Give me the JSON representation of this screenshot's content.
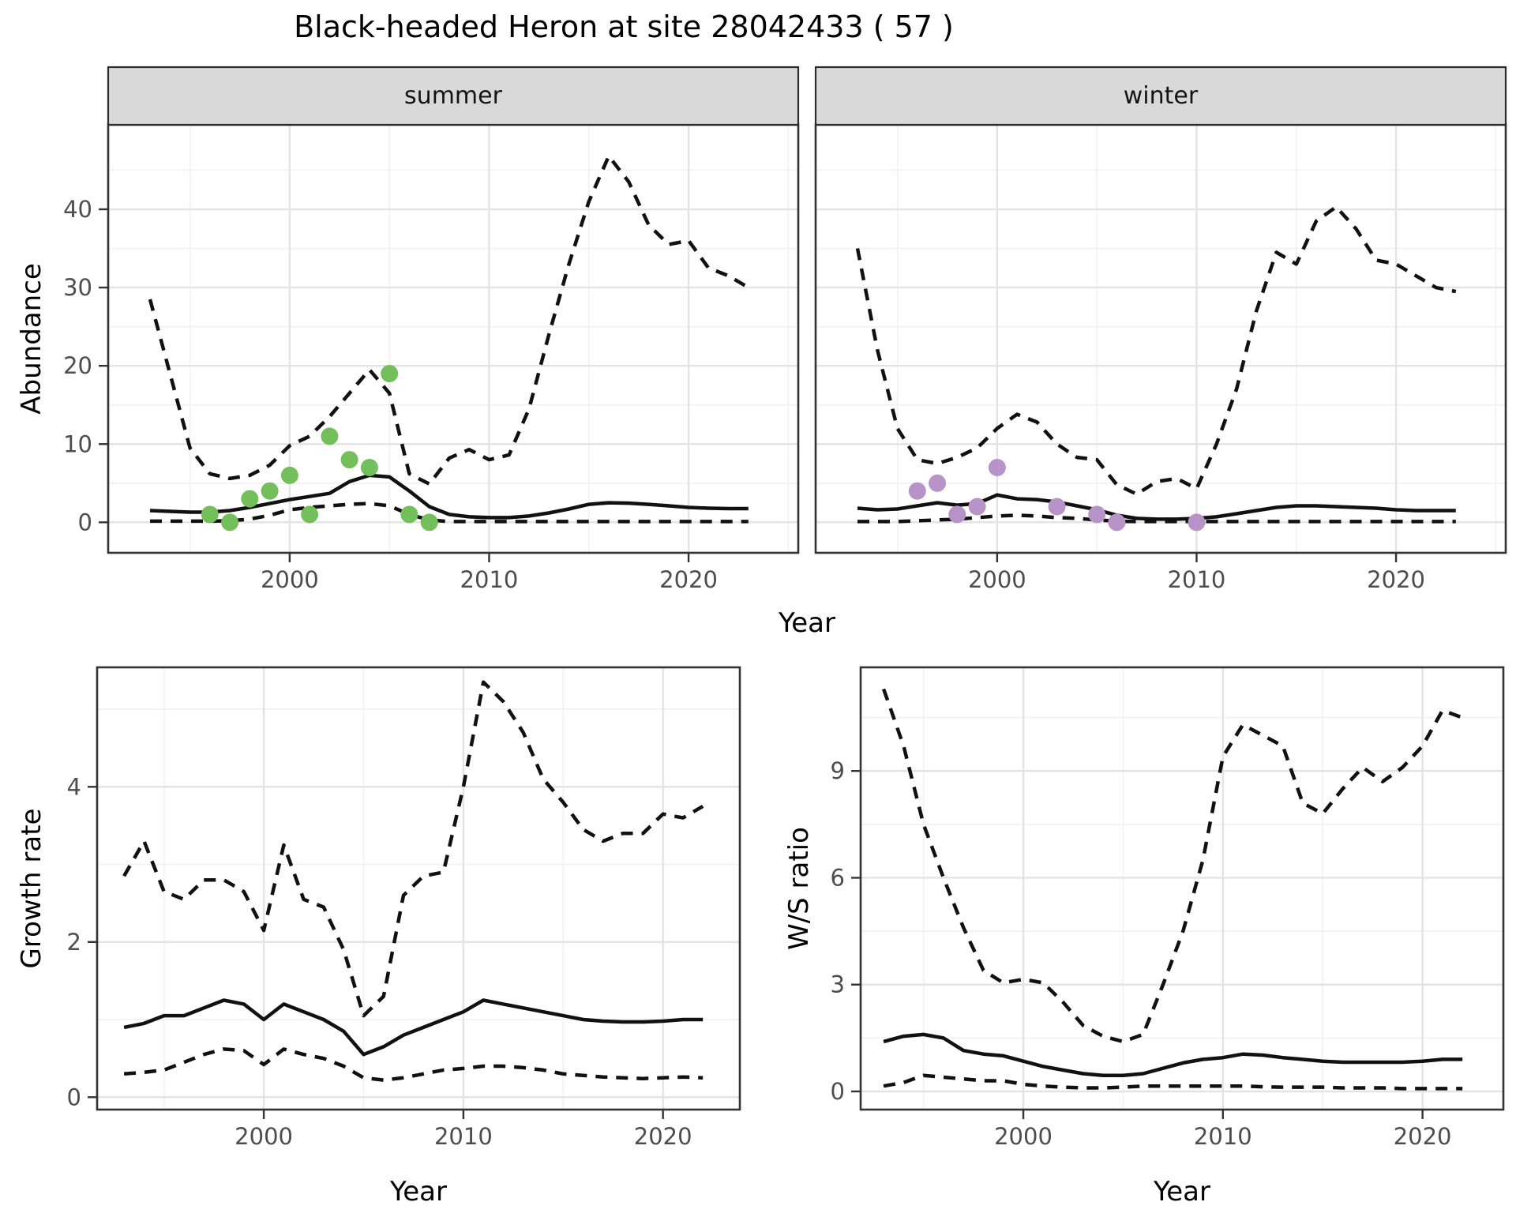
{
  "title": "Black-headed Heron at site 28042433 ( 57 )",
  "axes": {
    "abundance": "Abundance",
    "year_top": "Year",
    "growth": "Growth rate",
    "ratio": "W/S ratio",
    "year_bottom_left": "Year",
    "year_bottom_right": "Year"
  },
  "colors": {
    "line": "#111111",
    "observed_summer": "#73bf5b",
    "observed_winter": "#b793c8",
    "strip_fill": "#d9d9d9",
    "strip_border": "#2b2b2b",
    "panel_border": "#333333",
    "panel_bg": "#ffffff",
    "grid_major": "#e3e3e3",
    "grid_minor": "#f1f1f1",
    "tick_mark": "#333333",
    "tick_label": "#4d4d4d",
    "axis_title": "#000000"
  },
  "chart_data": [
    {
      "id": "abundance-summer",
      "type": "line",
      "facet_label": "summer",
      "xlabel": "Year",
      "ylabel": "Abundance",
      "xlim": [
        1990.9,
        2025.5
      ],
      "ylim": [
        -3.9,
        50.8
      ],
      "xticks": [
        2000,
        2010,
        2020
      ],
      "xticks_minor": [
        1995,
        2005,
        2015,
        2025
      ],
      "yticks": [
        0,
        10,
        20,
        30,
        40
      ],
      "yticks_minor": [
        5,
        15,
        25,
        35,
        45
      ],
      "x": [
        1993,
        1994,
        1995,
        1996,
        1997,
        1998,
        1999,
        2000,
        2001,
        2002,
        2003,
        2004,
        2005,
        2006,
        2007,
        2008,
        2009,
        2010,
        2011,
        2012,
        2013,
        2014,
        2015,
        2016,
        2017,
        2018,
        2019,
        2020,
        2021,
        2022,
        2023
      ],
      "series": [
        {
          "name": "median",
          "linetype": "solid",
          "values": [
            1.5,
            1.4,
            1.3,
            1.3,
            1.5,
            1.9,
            2.4,
            2.9,
            3.3,
            3.7,
            5.2,
            6.0,
            5.8,
            4.0,
            2.0,
            1.0,
            0.7,
            0.6,
            0.6,
            0.8,
            1.2,
            1.7,
            2.3,
            2.5,
            2.45,
            2.3,
            2.1,
            1.9,
            1.8,
            1.75,
            1.75
          ]
        },
        {
          "name": "upper 95% CI",
          "linetype": "dashed",
          "values": [
            28.5,
            19.0,
            9.5,
            6.2,
            5.6,
            6.0,
            7.3,
            9.8,
            11.0,
            13.5,
            16.5,
            19.5,
            16.5,
            6.2,
            4.9,
            8.2,
            9.3,
            8.0,
            8.6,
            14.5,
            24.0,
            33.0,
            41.0,
            46.8,
            43.5,
            38.0,
            35.5,
            36.0,
            32.5,
            31.5,
            30.0
          ]
        },
        {
          "name": "lower 95% CI",
          "linetype": "dashed",
          "values": [
            0.15,
            0.15,
            0.15,
            0.15,
            0.2,
            0.4,
            0.9,
            1.6,
            1.9,
            2.1,
            2.3,
            2.4,
            2.1,
            1.0,
            0.3,
            0.1,
            0.1,
            0.1,
            0.1,
            0.1,
            0.1,
            0.1,
            0.1,
            0.1,
            0.1,
            0.1,
            0.1,
            0.1,
            0.1,
            0.1,
            0.1
          ]
        }
      ],
      "points": {
        "name": "observed summer counts",
        "color_key": "observed_summer",
        "data": [
          [
            1996,
            1
          ],
          [
            1997,
            0
          ],
          [
            1998,
            3
          ],
          [
            1999,
            4
          ],
          [
            2000,
            6
          ],
          [
            2001,
            1
          ],
          [
            2002,
            11
          ],
          [
            2003,
            8
          ],
          [
            2004,
            7
          ],
          [
            2005,
            19
          ],
          [
            2006,
            1
          ],
          [
            2007,
            0
          ]
        ]
      }
    },
    {
      "id": "abundance-winter",
      "type": "line",
      "facet_label": "winter",
      "xlabel": "Year",
      "ylabel": "",
      "xlim": [
        1990.9,
        2025.5
      ],
      "ylim": [
        -3.9,
        50.8
      ],
      "xticks": [
        2000,
        2010,
        2020
      ],
      "xticks_minor": [
        1995,
        2005,
        2015,
        2025
      ],
      "yticks": [
        0,
        10,
        20,
        30,
        40
      ],
      "yticks_minor": [
        5,
        15,
        25,
        35,
        45
      ],
      "x": [
        1993,
        1994,
        1995,
        1996,
        1997,
        1998,
        1999,
        2000,
        2001,
        2002,
        2003,
        2004,
        2005,
        2006,
        2007,
        2008,
        2009,
        2010,
        2011,
        2012,
        2013,
        2014,
        2015,
        2016,
        2017,
        2018,
        2019,
        2020,
        2021,
        2022,
        2023
      ],
      "series": [
        {
          "name": "median",
          "linetype": "solid",
          "values": [
            1.8,
            1.6,
            1.7,
            2.1,
            2.5,
            2.2,
            2.4,
            3.5,
            3.0,
            2.9,
            2.6,
            2.1,
            1.6,
            0.9,
            0.5,
            0.4,
            0.4,
            0.5,
            0.7,
            1.1,
            1.5,
            1.9,
            2.1,
            2.1,
            2.0,
            1.9,
            1.8,
            1.6,
            1.5,
            1.5,
            1.5
          ]
        },
        {
          "name": "upper 95% CI",
          "linetype": "dashed",
          "values": [
            35.0,
            22.0,
            12.0,
            8.0,
            7.5,
            8.3,
            9.5,
            12.0,
            13.8,
            12.8,
            10.0,
            8.3,
            8.0,
            4.8,
            3.6,
            5.2,
            5.6,
            4.3,
            10.0,
            17.0,
            27.0,
            34.5,
            33.0,
            38.5,
            40.3,
            37.5,
            33.5,
            33.0,
            31.5,
            30.0,
            29.5
          ]
        },
        {
          "name": "lower 95% CI",
          "linetype": "dashed",
          "values": [
            0.1,
            0.1,
            0.1,
            0.2,
            0.3,
            0.4,
            0.6,
            0.8,
            0.9,
            0.8,
            0.6,
            0.5,
            0.3,
            0.15,
            0.1,
            0.1,
            0.1,
            0.1,
            0.1,
            0.1,
            0.1,
            0.1,
            0.1,
            0.1,
            0.1,
            0.1,
            0.1,
            0.1,
            0.1,
            0.1,
            0.1
          ]
        }
      ],
      "points": {
        "name": "observed winter counts",
        "color_key": "observed_winter",
        "data": [
          [
            1996,
            4
          ],
          [
            1997,
            5
          ],
          [
            1998,
            1
          ],
          [
            1999,
            2
          ],
          [
            2000,
            7
          ],
          [
            2003,
            2
          ],
          [
            2005,
            1
          ],
          [
            2006,
            0
          ],
          [
            2010,
            0
          ]
        ]
      }
    },
    {
      "id": "growth-rate",
      "type": "line",
      "facet_label": "",
      "xlabel": "Year",
      "ylabel": "Growth rate",
      "xlim": [
        1991.65,
        2023.85
      ],
      "ylim": [
        -0.16,
        5.54
      ],
      "xticks": [
        2000,
        2010,
        2020
      ],
      "xticks_minor": [
        1995,
        2005,
        2015
      ],
      "yticks": [
        0,
        2,
        4
      ],
      "yticks_minor": [
        1,
        3,
        5
      ],
      "x": [
        1993,
        1994,
        1995,
        1996,
        1997,
        1998,
        1999,
        2000,
        2001,
        2002,
        2003,
        2004,
        2005,
        2006,
        2007,
        2008,
        2009,
        2010,
        2011,
        2012,
        2013,
        2014,
        2015,
        2016,
        2017,
        2018,
        2019,
        2020,
        2021,
        2022
      ],
      "series": [
        {
          "name": "median",
          "linetype": "solid",
          "values": [
            0.9,
            0.95,
            1.05,
            1.05,
            1.15,
            1.25,
            1.2,
            1.0,
            1.2,
            1.1,
            1.0,
            0.85,
            0.55,
            0.65,
            0.8,
            0.9,
            1.0,
            1.1,
            1.25,
            1.2,
            1.15,
            1.1,
            1.05,
            1.0,
            0.98,
            0.97,
            0.97,
            0.98,
            1.0,
            1.0
          ]
        },
        {
          "name": "upper 95% CI",
          "linetype": "dashed",
          "values": [
            2.85,
            3.3,
            2.65,
            2.55,
            2.8,
            2.8,
            2.65,
            2.15,
            3.25,
            2.55,
            2.45,
            1.9,
            1.05,
            1.3,
            2.6,
            2.85,
            2.9,
            4.0,
            5.35,
            5.1,
            4.7,
            4.1,
            3.8,
            3.45,
            3.3,
            3.4,
            3.4,
            3.65,
            3.6,
            3.75
          ]
        },
        {
          "name": "lower 95% CI",
          "linetype": "dashed",
          "values": [
            0.3,
            0.32,
            0.35,
            0.45,
            0.55,
            0.62,
            0.6,
            0.42,
            0.62,
            0.55,
            0.5,
            0.4,
            0.25,
            0.22,
            0.25,
            0.3,
            0.35,
            0.37,
            0.4,
            0.4,
            0.38,
            0.35,
            0.3,
            0.28,
            0.26,
            0.25,
            0.24,
            0.25,
            0.26,
            0.25
          ]
        }
      ],
      "points": null
    },
    {
      "id": "ws-ratio",
      "type": "line",
      "facet_label": "",
      "xlabel": "Year",
      "ylabel": "W/S ratio",
      "xlim": [
        1991.85,
        2024.05
      ],
      "ylim": [
        -0.51,
        11.91
      ],
      "xticks": [
        2000,
        2010,
        2020
      ],
      "xticks_minor": [
        1995,
        2005,
        2015
      ],
      "yticks": [
        0,
        3,
        6,
        9
      ],
      "yticks_minor": [
        1.5,
        4.5,
        7.5,
        10.5
      ],
      "x": [
        1993,
        1994,
        1995,
        1996,
        1997,
        1998,
        1999,
        2000,
        2001,
        2002,
        2003,
        2004,
        2005,
        2006,
        2007,
        2008,
        2009,
        2010,
        2011,
        2012,
        2013,
        2014,
        2015,
        2016,
        2017,
        2018,
        2019,
        2020,
        2021,
        2022
      ],
      "series": [
        {
          "name": "median",
          "linetype": "solid",
          "values": [
            1.4,
            1.55,
            1.6,
            1.5,
            1.15,
            1.05,
            1.0,
            0.85,
            0.7,
            0.6,
            0.5,
            0.45,
            0.45,
            0.5,
            0.65,
            0.8,
            0.9,
            0.95,
            1.05,
            1.02,
            0.95,
            0.9,
            0.85,
            0.82,
            0.82,
            0.82,
            0.82,
            0.85,
            0.9,
            0.9
          ]
        },
        {
          "name": "upper 95% CI",
          "linetype": "dashed",
          "values": [
            11.3,
            9.7,
            7.5,
            6.0,
            4.6,
            3.4,
            3.05,
            3.15,
            3.05,
            2.5,
            1.85,
            1.55,
            1.4,
            1.6,
            3.0,
            4.5,
            6.5,
            9.4,
            10.3,
            10.0,
            9.7,
            8.1,
            7.8,
            8.5,
            9.1,
            8.7,
            9.1,
            9.7,
            10.7,
            10.5
          ]
        },
        {
          "name": "lower 95% CI",
          "linetype": "dashed",
          "values": [
            0.15,
            0.25,
            0.45,
            0.4,
            0.35,
            0.3,
            0.3,
            0.2,
            0.15,
            0.12,
            0.1,
            0.1,
            0.12,
            0.15,
            0.15,
            0.15,
            0.15,
            0.15,
            0.15,
            0.13,
            0.12,
            0.12,
            0.12,
            0.1,
            0.1,
            0.1,
            0.08,
            0.08,
            0.08,
            0.08
          ]
        }
      ],
      "points": null
    }
  ]
}
